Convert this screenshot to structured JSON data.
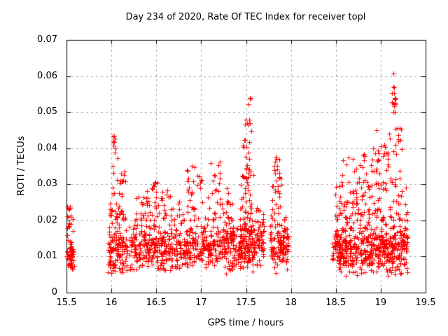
{
  "figure": {
    "background": "#ffffff"
  },
  "chart_data": {
    "type": "scatter",
    "title": "Day 234 of 2020, Rate Of TEC Index for receiver topl",
    "xlabel": "GPS time / hours",
    "ylabel": "ROTI / TECUs",
    "xlim": [
      15.5,
      19.5
    ],
    "ylim": [
      0,
      0.07
    ],
    "grid": true,
    "legend": "none",
    "xticks": [
      {
        "v": 15.5,
        "label": "15.5"
      },
      {
        "v": 16,
        "label": "16"
      },
      {
        "v": 16.5,
        "label": "16.5"
      },
      {
        "v": 17,
        "label": "17"
      },
      {
        "v": 17.5,
        "label": "17.5"
      },
      {
        "v": 18,
        "label": "18"
      },
      {
        "v": 18.5,
        "label": "18.5"
      },
      {
        "v": 19,
        "label": "19"
      },
      {
        "v": 19.5,
        "label": "19.5"
      }
    ],
    "yticks": [
      {
        "v": 0,
        "label": "0"
      },
      {
        "v": 0.01,
        "label": "0.01"
      },
      {
        "v": 0.02,
        "label": "0.02"
      },
      {
        "v": 0.03,
        "label": "0.03"
      },
      {
        "v": 0.04,
        "label": "0.04"
      },
      {
        "v": 0.05,
        "label": "0.05"
      },
      {
        "v": 0.06,
        "label": "0.06"
      },
      {
        "v": 0.07,
        "label": "0.07"
      }
    ],
    "colors": {
      "marker": "#ff0000",
      "axis": "#000000",
      "grid": "#aaaaaa",
      "text": "#000000",
      "background": "#ffffff"
    },
    "marker": {
      "symbol": "plus",
      "size": 7,
      "line_width": 1
    },
    "data_gaps": [
      [
        15.59,
        15.96
      ],
      [
        17.97,
        18.46
      ],
      [
        19.3,
        19.5
      ]
    ],
    "seed": 11,
    "clusters": [
      {
        "t": [
          15.5,
          15.585
        ],
        "v": [
          0.005,
          0.016
        ],
        "n": 48,
        "shape": "tri"
      },
      {
        "t": [
          15.5,
          15.575
        ],
        "v": [
          0.0155,
          0.0205
        ],
        "n": 9,
        "shape": "uni"
      },
      {
        "t": [
          15.5,
          15.56
        ],
        "v": [
          0.0205,
          0.0245
        ],
        "n": 9,
        "shape": "uni"
      },
      {
        "t": [
          15.96,
          16.18
        ],
        "v": [
          0.005,
          0.02
        ],
        "n": 120,
        "shape": "tri"
      },
      {
        "t": [
          15.98,
          16.16
        ],
        "v": [
          0.02,
          0.027
        ],
        "n": 26,
        "shape": "pow",
        "bias": 1.4
      },
      {
        "t": [
          16.0,
          16.07
        ],
        "v": [
          0.027,
          0.0435
        ],
        "n": 13,
        "shape": "pow",
        "bias": 1.3
      },
      {
        "t": [
          16.08,
          16.16
        ],
        "v": [
          0.027,
          0.0335
        ],
        "n": 11,
        "shape": "pow",
        "bias": 1.2
      },
      {
        "t": [
          16.2,
          17.42
        ],
        "v": [
          0.005,
          0.02
        ],
        "n": 560,
        "shape": "tri"
      },
      {
        "t": [
          16.22,
          17.42
        ],
        "v": [
          0.02,
          0.0265
        ],
        "n": 90,
        "shape": "pow",
        "bias": 1.5
      },
      {
        "t": [
          16.3,
          16.42
        ],
        "v": [
          0.024,
          0.0285
        ],
        "n": 8,
        "shape": "uni"
      },
      {
        "t": [
          16.45,
          16.66
        ],
        "v": [
          0.025,
          0.031
        ],
        "n": 16,
        "shape": "uni"
      },
      {
        "t": [
          16.84,
          17.02
        ],
        "v": [
          0.0265,
          0.036
        ],
        "n": 20,
        "shape": "pow",
        "bias": 1.2
      },
      {
        "t": [
          17.1,
          17.32
        ],
        "v": [
          0.0275,
          0.0368
        ],
        "n": 15,
        "shape": "pow",
        "bias": 1.2
      },
      {
        "t": [
          17.42,
          17.6
        ],
        "v": [
          0.005,
          0.022
        ],
        "n": 140,
        "shape": "tri"
      },
      {
        "t": [
          17.43,
          17.58
        ],
        "v": [
          0.022,
          0.033
        ],
        "n": 30,
        "shape": "pow",
        "bias": 1.3
      },
      {
        "t": [
          17.45,
          17.57
        ],
        "v": [
          0.033,
          0.043
        ],
        "n": 16,
        "shape": "pow",
        "bias": 1.2
      },
      {
        "t": [
          17.49,
          17.56
        ],
        "v": [
          0.043,
          0.048
        ],
        "n": 7,
        "shape": "uni"
      },
      {
        "t": [
          17.6,
          17.7
        ],
        "v": [
          0.006,
          0.025
        ],
        "n": 60,
        "shape": "tri"
      },
      {
        "t": [
          17.77,
          17.97
        ],
        "v": [
          0.005,
          0.022
        ],
        "n": 120,
        "shape": "tri"
      },
      {
        "t": [
          17.79,
          17.9
        ],
        "v": [
          0.022,
          0.032
        ],
        "n": 18,
        "shape": "pow",
        "bias": 1.2
      },
      {
        "t": [
          17.8,
          17.87
        ],
        "v": [
          0.031,
          0.0385
        ],
        "n": 11,
        "shape": "uni"
      },
      {
        "t": [
          18.46,
          19.3
        ],
        "v": [
          0.004,
          0.02
        ],
        "n": 500,
        "shape": "tri"
      },
      {
        "t": [
          18.48,
          19.3
        ],
        "v": [
          0.02,
          0.03
        ],
        "n": 115,
        "shape": "pow",
        "bias": 1.4
      },
      {
        "t": [
          18.55,
          19.28
        ],
        "v": [
          0.03,
          0.04
        ],
        "n": 55,
        "shape": "pow",
        "bias": 1.3
      },
      {
        "t": [
          18.95,
          19.25
        ],
        "v": [
          0.04,
          0.046
        ],
        "n": 10,
        "shape": "uni"
      },
      {
        "t": [
          19.02,
          19.1
        ],
        "v": [
          0.037,
          0.042
        ],
        "n": 6,
        "shape": "uni"
      },
      {
        "t": [
          19.12,
          19.18
        ],
        "v": [
          0.05,
          0.0575
        ],
        "n": 7,
        "shape": "uni"
      }
    ],
    "notable_points": [
      [
        16.012,
        0.0432
      ],
      [
        16.017,
        0.0419
      ],
      [
        16.022,
        0.0407
      ],
      [
        17.542,
        0.054
      ],
      [
        17.548,
        0.0537
      ],
      [
        17.528,
        0.0521
      ],
      [
        19.143,
        0.0607
      ],
      [
        19.139,
        0.057
      ],
      [
        19.15,
        0.0568
      ],
      [
        19.147,
        0.0553
      ],
      [
        19.155,
        0.054
      ],
      [
        19.128,
        0.0528
      ],
      [
        19.132,
        0.0524
      ],
      [
        19.16,
        0.05
      ],
      [
        19.19,
        0.0456
      ],
      [
        19.196,
        0.0436
      ],
      [
        19.193,
        0.0419
      ]
    ]
  }
}
